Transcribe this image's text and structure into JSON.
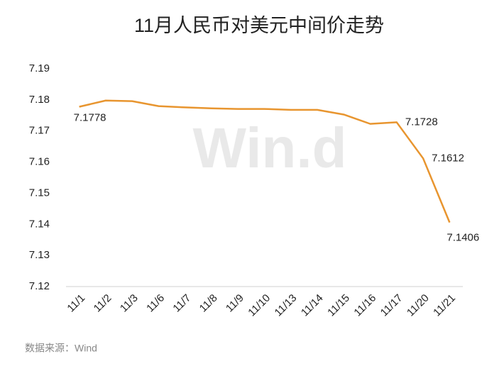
{
  "chart_data": {
    "type": "line",
    "title": "11月人民币对美元中间价走势",
    "categories": [
      "11/1",
      "11/2",
      "11/3",
      "11/6",
      "11/7",
      "11/8",
      "11/9",
      "11/10",
      "11/13",
      "11/14",
      "11/15",
      "11/16",
      "11/17",
      "11/20",
      "11/21"
    ],
    "values": [
      7.1778,
      7.1798,
      7.1796,
      7.178,
      7.1776,
      7.1773,
      7.1771,
      7.1771,
      7.1768,
      7.1768,
      7.1753,
      7.1723,
      7.1728,
      7.1612,
      7.1406
    ],
    "value_labels": [
      "7.1778",
      null,
      null,
      null,
      null,
      null,
      null,
      null,
      null,
      null,
      null,
      null,
      "7.1728",
      "7.1612",
      "7.1406"
    ],
    "color": "#e8952f",
    "ylim": [
      7.12,
      7.19
    ],
    "yticks": [
      7.12,
      7.13,
      7.14,
      7.15,
      7.16,
      7.17,
      7.18,
      7.19
    ],
    "grid": false,
    "watermark": "Win.d",
    "source": "数据来源：Wind"
  }
}
